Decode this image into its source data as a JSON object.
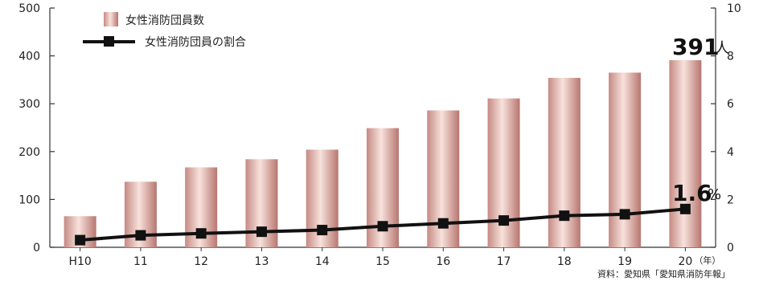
{
  "chart_data": {
    "type": "bar",
    "categories": [
      "H10",
      "11",
      "12",
      "13",
      "14",
      "15",
      "16",
      "17",
      "18",
      "19",
      "20"
    ],
    "x_unit": "（年）",
    "series": [
      {
        "name": "女性消防団員数",
        "type": "bar",
        "axis": "left",
        "values": [
          65,
          137,
          167,
          184,
          204,
          249,
          286,
          311,
          354,
          365,
          391
        ]
      },
      {
        "name": "女性消防団員の割合",
        "type": "line",
        "axis": "right",
        "values": [
          0.3,
          0.5,
          0.58,
          0.65,
          0.72,
          0.88,
          1.0,
          1.12,
          1.32,
          1.38,
          1.6
        ]
      }
    ],
    "y_left": {
      "min": 0,
      "max": 500,
      "ticks": [
        "0",
        "100",
        "200",
        "300",
        "400",
        "500"
      ]
    },
    "y_right": {
      "min": 0,
      "max": 10,
      "ticks": [
        "0",
        "2",
        "4",
        "6",
        "8",
        "10"
      ]
    },
    "legend_position": "top-left",
    "grid": false,
    "annotations": {
      "last_bar_value": "391",
      "last_bar_unit": "人",
      "last_line_value": "1.6",
      "last_line_unit": "%"
    },
    "source": "資料：愛知県「愛知県消防年報」",
    "colors": {
      "bar_edge": "#bf7f78",
      "bar_mid": "#f6dcd6",
      "line": "#111111",
      "axis": "#333333"
    }
  }
}
